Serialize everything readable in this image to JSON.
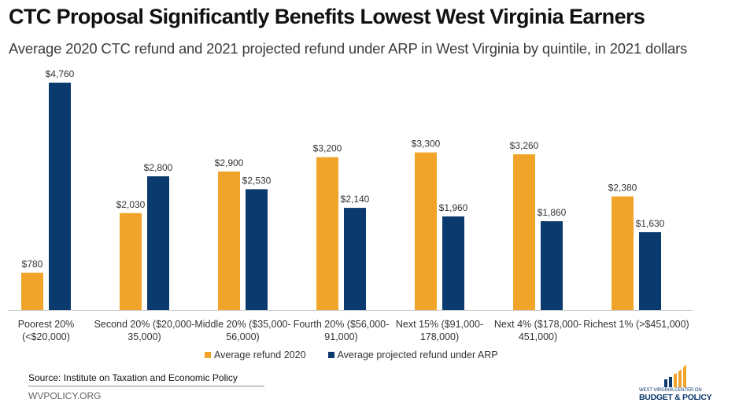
{
  "header": {
    "title": "CTC Proposal Significantly Benefits Lowest West Virginia Earners",
    "subtitle": "Average 2020 CTC refund and 2021 projected refund under ARP in West Virginia by quintile, in 2021 dollars"
  },
  "colors": {
    "series_2020": "#F0A52A",
    "series_arp": "#0B3A6E",
    "axis": "#d0d0d0"
  },
  "chart_data": {
    "type": "bar",
    "title": "CTC Proposal Significantly Benefits Lowest West Virginia Earners",
    "subtitle": "Average 2020 CTC refund and 2021 projected refund under ARP in West Virginia by quintile, in 2021 dollars",
    "xlabel": "",
    "ylabel": "",
    "ylim": [
      0,
      4760
    ],
    "grid": false,
    "legend_position": "bottom",
    "categories": [
      [
        "Poorest 20%",
        "(<$20,000)"
      ],
      [
        "Second 20% ($20,000-",
        "35,000)"
      ],
      [
        "Middle 20% ($35,000-",
        "56,000)"
      ],
      [
        "Fourth 20% ($56,000-",
        "91,000)"
      ],
      [
        "Next 15% ($91,000-",
        "178,000)"
      ],
      [
        "Next 4% ($178,000-",
        "451,000)"
      ],
      [
        "Richest 1% (>$451,000)"
      ]
    ],
    "series": [
      {
        "name": "Average refund 2020",
        "values": [
          780,
          2030,
          2900,
          3200,
          3300,
          3260,
          2380
        ],
        "labels": [
          "$780",
          "$2,030",
          "$2,900",
          "$3,200",
          "$3,300",
          "$3,260",
          "$2,380"
        ]
      },
      {
        "name": "Average projected refund under ARP",
        "values": [
          4760,
          2800,
          2530,
          2140,
          1960,
          1860,
          1630
        ],
        "labels": [
          "$4,760",
          "$2,800",
          "$2,530",
          "$2,140",
          "$1,960",
          "$1,860",
          "$1,630"
        ]
      }
    ]
  },
  "footer": {
    "source": "Source: Institute on Taxation and Economic Policy",
    "site": "WVPOLICY.ORG",
    "logo_line1": "WEST VIRGINIA CENTER ON",
    "logo_line2": "BUDGET & POLICY"
  }
}
